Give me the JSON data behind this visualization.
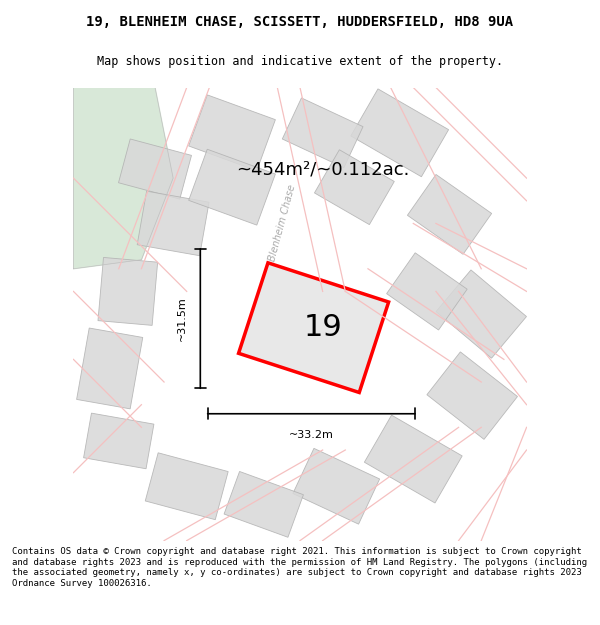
{
  "title_line1": "19, BLENHEIM CHASE, SCISSETT, HUDDERSFIELD, HD8 9UA",
  "title_line2": "Map shows position and indicative extent of the property.",
  "area_text": "~454m²/~0.112ac.",
  "label_19": "19",
  "dim_vertical": "~31.5m",
  "dim_horizontal": "~33.2m",
  "street_label": "Blenheim Chase",
  "footer_text": "Contains OS data © Crown copyright and database right 2021. This information is subject to Crown copyright and database rights 2023 and is reproduced with the permission of HM Land Registry. The polygons (including the associated geometry, namely x, y co-ordinates) are subject to Crown copyright and database rights 2023 Ordnance Survey 100026316.",
  "bg_map_color": "#f0f0ee",
  "bg_green_color": "#d8e8d8",
  "plot_polygon_color": "#ff0000",
  "plot_fill_color": "#e8e8e8",
  "other_plots_color": "#d8d8d8",
  "road_line_color": "#f5c0c0",
  "title_bg": "#ffffff",
  "footer_bg": "#ffffff",
  "map_bg": "#f5f5f3"
}
